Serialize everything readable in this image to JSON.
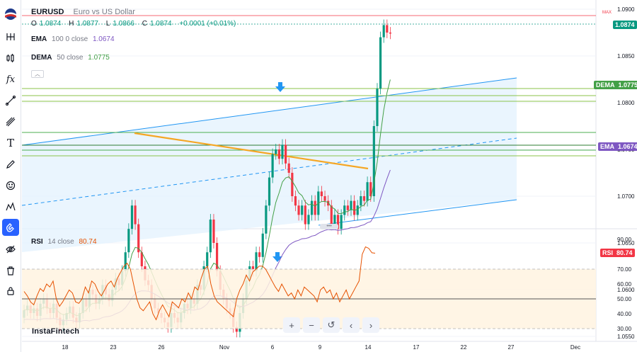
{
  "symbol": {
    "ticker": "EURUSD",
    "description": "Euro vs US Dollar"
  },
  "ohlc": {
    "o_label": "O",
    "o": "1.0874",
    "h_label": "H",
    "h": "1.0877",
    "l_label": "L",
    "l": "1.0866",
    "c_label": "C",
    "c": "1.0874",
    "change": "+0.0001 (+0.01%)"
  },
  "indicators": {
    "ema": {
      "name": "EMA",
      "params": "100 0 close",
      "value": "1.0674",
      "color": "#7e57c2"
    },
    "dema": {
      "name": "DEMA",
      "params": "50 close",
      "value": "1.0775",
      "color": "#43a047"
    },
    "rsi": {
      "name": "RSI",
      "params": "14 close",
      "value": "80.74",
      "color": "#e65100"
    }
  },
  "price_tags": {
    "last": "1.0874",
    "dema_label": "DEMA",
    "dema_value": "1.0775",
    "ema_label": "EMA",
    "ema_value": "1.0674",
    "rsi_label": "RSI",
    "rsi_value": "80.74",
    "max_label": "MAX"
  },
  "price_axis": [
    "1.0900",
    "1.0850",
    "1.0800",
    "1.0750",
    "1.0700",
    "1.0650",
    "1.0600",
    "1.0550"
  ],
  "rsi_axis": [
    "90.00",
    "80.00",
    "70.00",
    "60.00",
    "50.00",
    "40.00",
    "30.00"
  ],
  "time_axis": [
    "18",
    "23",
    "26",
    "Nov",
    "6",
    "9",
    "14",
    "17",
    "22",
    "27",
    "Dec"
  ],
  "nav_buttons": [
    "+",
    "−",
    "↺",
    "‹",
    "›"
  ],
  "brand": "InstaFintech",
  "colors": {
    "up": "#089981",
    "down": "#f23645",
    "accent": "#2962ff"
  }
}
